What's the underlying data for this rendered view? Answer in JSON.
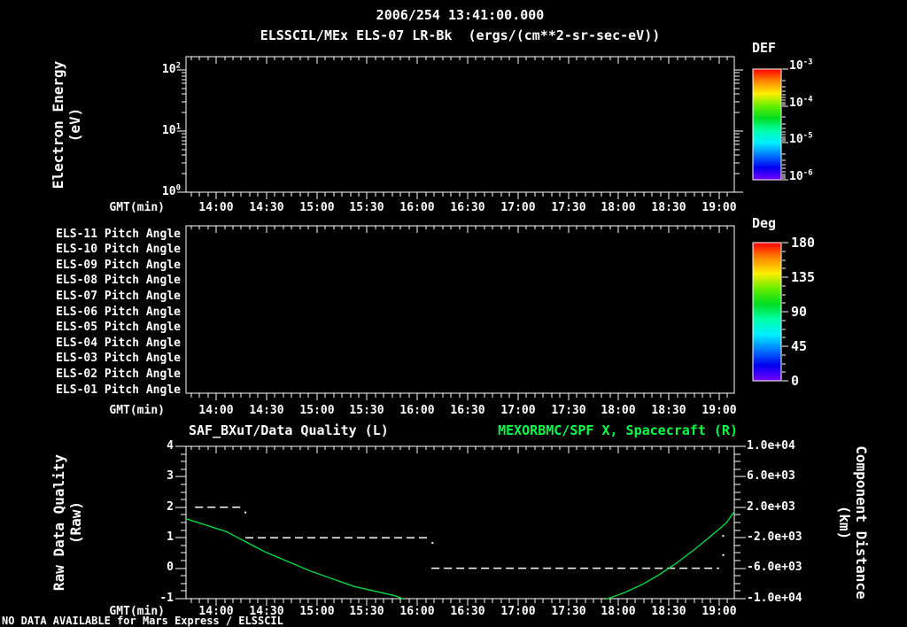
{
  "header": {
    "datetime_title": "2006/254 13:41:00.000",
    "plot_title": "ELSSCIL/MEx ELS-07 LR-Bk  (ergs/(cm**2-sr-sec-eV))"
  },
  "time_axis": {
    "label": "GMT(min)",
    "tick_labels": [
      "14:00",
      "14:30",
      "15:00",
      "15:30",
      "16:00",
      "16:30",
      "17:00",
      "17:30",
      "18:00",
      "18:30",
      "19:00"
    ]
  },
  "energy_panel": {
    "ylabel_line1": "Electron Energy",
    "ylabel_line2": "(eV)",
    "ytick_exponents": [
      {
        "base": "10",
        "exp": "2"
      },
      {
        "base": "10",
        "exp": "1"
      },
      {
        "base": "10",
        "exp": "0"
      }
    ],
    "colorbar": {
      "title": "DEF",
      "tick_exponents": [
        {
          "base": "10",
          "exp": "-3"
        },
        {
          "base": "10",
          "exp": "-4"
        },
        {
          "base": "10",
          "exp": "-5"
        },
        {
          "base": "10",
          "exp": "-6"
        }
      ]
    }
  },
  "pitch_panel": {
    "row_labels": [
      "ELS-11 Pitch Angle",
      "ELS-10 Pitch Angle",
      "ELS-09 Pitch Angle",
      "ELS-08 Pitch Angle",
      "ELS-07 Pitch Angle",
      "ELS-06 Pitch Angle",
      "ELS-05 Pitch Angle",
      "ELS-04 Pitch Angle",
      "ELS-03 Pitch Angle",
      "ELS-02 Pitch Angle",
      "ELS-01 Pitch Angle"
    ],
    "colorbar": {
      "title": "Deg",
      "tick_labels": [
        "180",
        "135",
        "90",
        "45",
        "0"
      ]
    }
  },
  "quality_panel": {
    "title_left": "SAF_BXuT/Data Quality (L)",
    "title_right": "MEXORBMC/SPF X, Spacecraft (R)",
    "ylabel_left_line1": "Raw Data Quality",
    "ylabel_left_line2": "(Raw)",
    "ylabel_right_line1": "Component Distance",
    "ylabel_right_line2": "(km)",
    "ytick_labels_left": [
      "4",
      "3",
      "2",
      "1",
      "0",
      "-1"
    ],
    "ytick_labels_right": [
      "1.0e+04",
      "6.0e+03",
      "2.0e+03",
      "-2.0e+03",
      "-6.0e+03",
      "-1.0e+04"
    ]
  },
  "status_bar": {
    "message": "NO DATA AVAILABLE for Mars Express / ELSSCIL"
  },
  "colors": {
    "background": "#000000",
    "foreground": "#ffffff",
    "title_green": "#00ff44",
    "series_green": "#00d844",
    "rainbow": [
      "#ff0000",
      "#ff8800",
      "#ffee00",
      "#66ee00",
      "#00dd22",
      "#00ffaa",
      "#00eeff",
      "#0077ff",
      "#0000ee",
      "#7700ff"
    ]
  },
  "chart_data": [
    {
      "type": "heatmap",
      "title": "ELSSCIL/MEx ELS-07 LR-Bk (ergs/(cm**2-sr-sec-eV))",
      "xlabel": "GMT(min)",
      "ylabel": "Electron Energy (eV)",
      "x_tick_labels": [
        "14:00",
        "14:30",
        "15:00",
        "15:30",
        "16:00",
        "16:30",
        "17:00",
        "17:30",
        "18:00",
        "18:30",
        "19:00"
      ],
      "y_scale": "log",
      "y_tick_values_eV": [
        1,
        10,
        100
      ],
      "colorbar": {
        "title": "DEF",
        "scale": "log",
        "min": 1e-06,
        "max": 0.001
      },
      "values": [],
      "note": "panel empty - no data plotted"
    },
    {
      "type": "heatmap",
      "rows": [
        "ELS-11 Pitch Angle",
        "ELS-10 Pitch Angle",
        "ELS-09 Pitch Angle",
        "ELS-08 Pitch Angle",
        "ELS-07 Pitch Angle",
        "ELS-06 Pitch Angle",
        "ELS-05 Pitch Angle",
        "ELS-04 Pitch Angle",
        "ELS-03 Pitch Angle",
        "ELS-02 Pitch Angle",
        "ELS-01 Pitch Angle"
      ],
      "xlabel": "GMT(min)",
      "colorbar": {
        "title": "Deg",
        "min": 0,
        "max": 180,
        "tick_values": [
          0,
          45,
          90,
          135,
          180
        ]
      },
      "values": [],
      "note": "panel empty - no data plotted"
    },
    {
      "type": "line",
      "xlabel": "GMT(min)",
      "x_unit": "decimal hours GMT",
      "x_domain": [
        13.7,
        19.15
      ],
      "ylim_left": [
        -1,
        4
      ],
      "ylim_right": [
        -10000,
        10000
      ],
      "ylabel_left": "Raw Data Quality (Raw)",
      "ylabel_right": "Component Distance (km)",
      "series": [
        {
          "name": "SAF_BXuT/Data Quality (L)",
          "axis": "left",
          "style": "dashed",
          "color": "#ffffff",
          "segments": [
            {
              "value": 2,
              "t_start": 13.79,
              "t_end": 14.28
            },
            {
              "value": 1,
              "t_start": 14.29,
              "t_end": 16.13
            },
            {
              "value": 0,
              "t_start": 16.14,
              "t_end": 19.0
            }
          ],
          "stray_points": [
            [
              14.29,
              1.83
            ],
            [
              16.15,
              0.83
            ],
            [
              19.04,
              1.06
            ],
            [
              19.04,
              0.43
            ]
          ]
        },
        {
          "name": "MEXORBMC/SPF X, Spacecraft (R)",
          "axis": "right",
          "style": "solid",
          "color": "#00d844",
          "points": [
            [
              13.7,
              500
            ],
            [
              14.1,
              -1200
            ],
            [
              14.48,
              -3830
            ],
            [
              14.93,
              -6340
            ],
            [
              15.37,
              -8400
            ],
            [
              15.79,
              -9660
            ],
            [
              15.87,
              -10110
            ],
            null,
            [
              17.87,
              -10110
            ],
            [
              18.06,
              -9200
            ],
            [
              18.23,
              -8170
            ],
            [
              18.41,
              -6800
            ],
            [
              18.59,
              -5200
            ],
            [
              18.76,
              -3490
            ],
            [
              18.94,
              -1540
            ],
            [
              19.07,
              -60
            ],
            [
              19.15,
              1430
            ]
          ]
        }
      ]
    }
  ]
}
